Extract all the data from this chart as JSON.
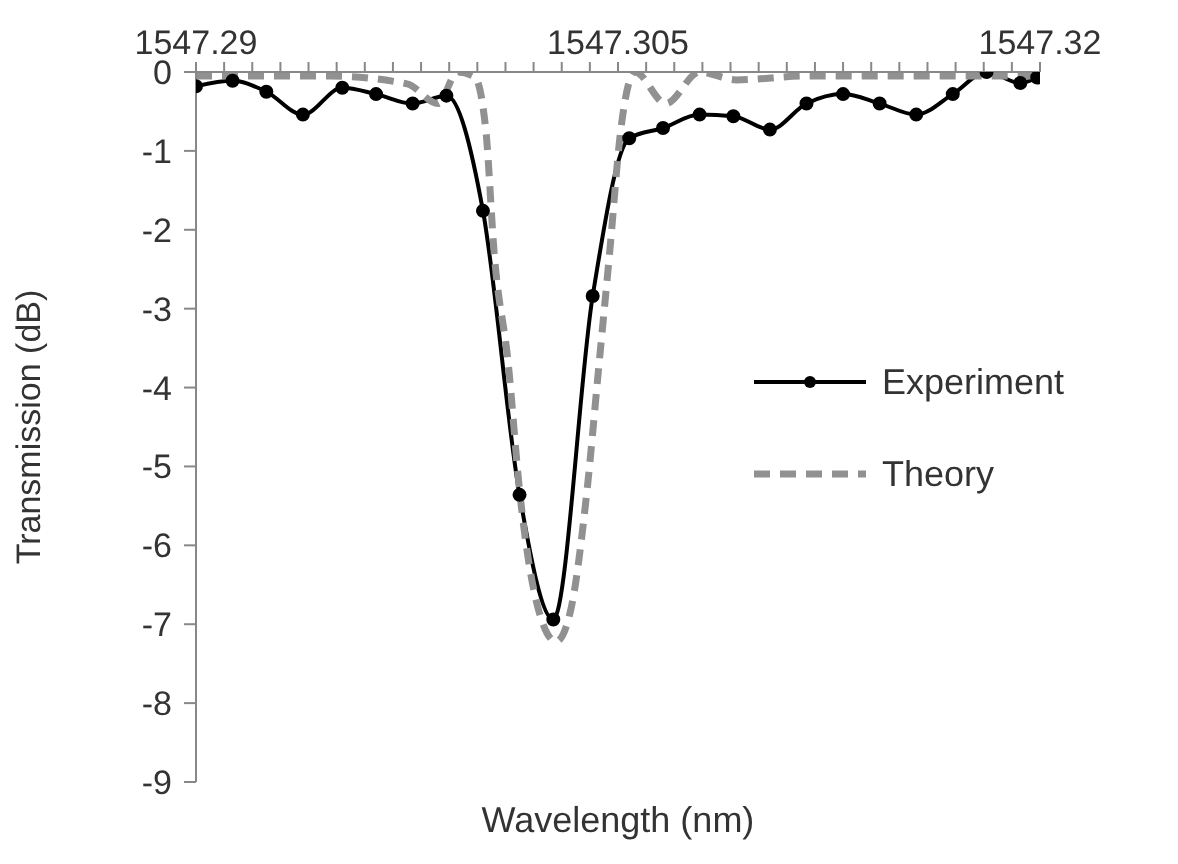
{
  "chart_data": {
    "type": "line",
    "xlabel": "Wavelength (nm)",
    "ylabel": "Transmission (dB)",
    "xlim": [
      1547.29,
      1547.32
    ],
    "xticks": [
      1547.29,
      {
        "value": 1547.291,
        "label": null
      },
      {
        "value": 1547.292,
        "label": null
      },
      {
        "value": 1547.293,
        "label": null
      },
      {
        "value": 1547.294,
        "label": null
      },
      {
        "value": 1547.295,
        "label": null
      },
      {
        "value": 1547.296,
        "label": null
      },
      {
        "value": 1547.297,
        "label": null
      },
      {
        "value": 1547.298,
        "label": null
      },
      {
        "value": 1547.299,
        "label": null
      },
      {
        "value": 1547.3,
        "label": null
      },
      {
        "value": 1547.301,
        "label": null
      },
      {
        "value": 1547.302,
        "label": null
      },
      {
        "value": 1547.303,
        "label": null
      },
      {
        "value": 1547.304,
        "label": null
      },
      1547.305,
      {
        "value": 1547.306,
        "label": null
      },
      {
        "value": 1547.307,
        "label": null
      },
      {
        "value": 1547.308,
        "label": null
      },
      {
        "value": 1547.309,
        "label": null
      },
      {
        "value": 1547.31,
        "label": null
      },
      {
        "value": 1547.311,
        "label": null
      },
      {
        "value": 1547.312,
        "label": null
      },
      {
        "value": 1547.313,
        "label": null
      },
      {
        "value": 1547.314,
        "label": null
      },
      {
        "value": 1547.315,
        "label": null
      },
      {
        "value": 1547.316,
        "label": null
      },
      {
        "value": 1547.317,
        "label": null
      },
      {
        "value": 1547.318,
        "label": null
      },
      {
        "value": 1547.319,
        "label": null
      },
      1547.32
    ],
    "ylim": [
      -9,
      0
    ],
    "yticks": [
      -9,
      -8,
      -7,
      -6,
      -5,
      -4,
      -3,
      -2,
      -1,
      0
    ],
    "grid": false,
    "legend": "right",
    "series": [
      {
        "name": "Experiment",
        "color": "#000000",
        "marker": "circle",
        "line_style": "solid",
        "x": [
          1547.29,
          1547.2913,
          1547.2925,
          1547.2938,
          1547.2952,
          1547.2964,
          1547.2977,
          1547.2989,
          1547.3002,
          1547.3015,
          1547.3027,
          1547.3041,
          1547.3054,
          1547.3066,
          1547.3079,
          1547.3091,
          1547.3104,
          1547.3117,
          1547.313,
          1547.3143,
          1547.3156,
          1547.3169,
          1547.3181,
          1547.3193,
          1547.3199
        ],
        "values": [
          -0.18,
          -0.11,
          -0.25,
          -0.54,
          -0.2,
          -0.28,
          -0.4,
          -0.3,
          -1.76,
          -5.36,
          -6.94,
          -2.84,
          -0.84,
          -0.71,
          -0.54,
          -0.56,
          -0.73,
          -0.4,
          -0.28,
          -0.4,
          -0.54,
          -0.28,
          0,
          -0.14,
          -0.07
        ]
      },
      {
        "name": "Theory",
        "color": "#919191",
        "marker": "none",
        "line_style": "dashed",
        "x": [
          1547.29,
          1547.2947,
          1547.2975,
          1547.2986,
          1547.2993,
          1547.2999,
          1547.3003,
          1547.3006,
          1547.3011,
          1547.3015,
          1547.3022,
          1547.3028,
          1547.3033,
          1547.3039,
          1547.3043,
          1547.3047,
          1547.3051,
          1547.3056,
          1547.3067,
          1547.3079,
          1547.3092,
          1547.3117,
          1547.32
        ],
        "values": [
          -0.05,
          -0.05,
          -0.15,
          -0.4,
          0,
          -0.06,
          -0.73,
          -2.3,
          -3.7,
          -5.3,
          -6.85,
          -7.22,
          -6.85,
          -5.3,
          -3.8,
          -2.3,
          -0.73,
          0,
          -0.4,
          0,
          -0.1,
          -0.05,
          -0.05
        ]
      }
    ]
  }
}
